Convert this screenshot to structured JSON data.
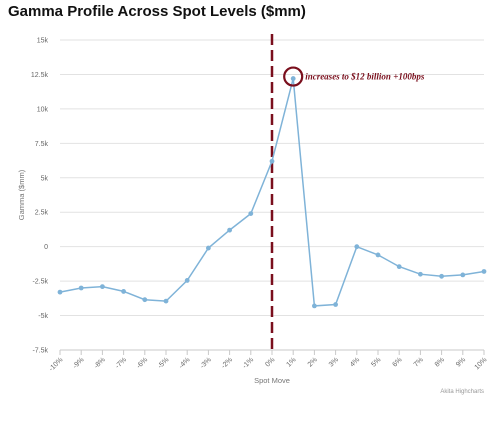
{
  "chart_data": {
    "type": "line",
    "title": "Gamma Profile Across Spot Levels ($mm)",
    "xlabel": "Spot Move",
    "ylabel": "Gamma ($mm)",
    "categories": [
      "-10%",
      "-9%",
      "-8%",
      "-7%",
      "-6%",
      "-5%",
      "-4%",
      "-3%",
      "-2%",
      "-1%",
      "0%",
      "1%",
      "2%",
      "3%",
      "4%",
      "5%",
      "6%",
      "7%",
      "8%",
      "9%",
      "10%"
    ],
    "series": [
      {
        "values": [
          -3300,
          -3000,
          -2900,
          -3250,
          -3850,
          -3950,
          -2450,
          -100,
          1200,
          2400,
          6200,
          12200,
          -4300,
          -4200,
          0,
          -600,
          -1450,
          -2000,
          -2150,
          -2050,
          -1800
        ]
      }
    ],
    "ylim": [
      -7500,
      15000
    ],
    "yticks": [
      -7500,
      -5000,
      -2500,
      0,
      2500,
      5000,
      7500,
      10000,
      12500,
      15000
    ],
    "ytick_labels": [
      "-7.5k",
      "-5k",
      "-2.5k",
      "0",
      "2.5k",
      "5k",
      "7.5k",
      "10k",
      "12.5k",
      "15k"
    ],
    "grid": true,
    "colors": {
      "line": "#7fb3d8",
      "marker_line": "#7a0f1d",
      "annotation": "#7a0f1d"
    },
    "vertical_marker_category": "0%",
    "annotation": {
      "text": "increases to $12 billion +100bps",
      "category": "1%",
      "value": 12200
    },
    "credit": "Akita Highcharts"
  }
}
